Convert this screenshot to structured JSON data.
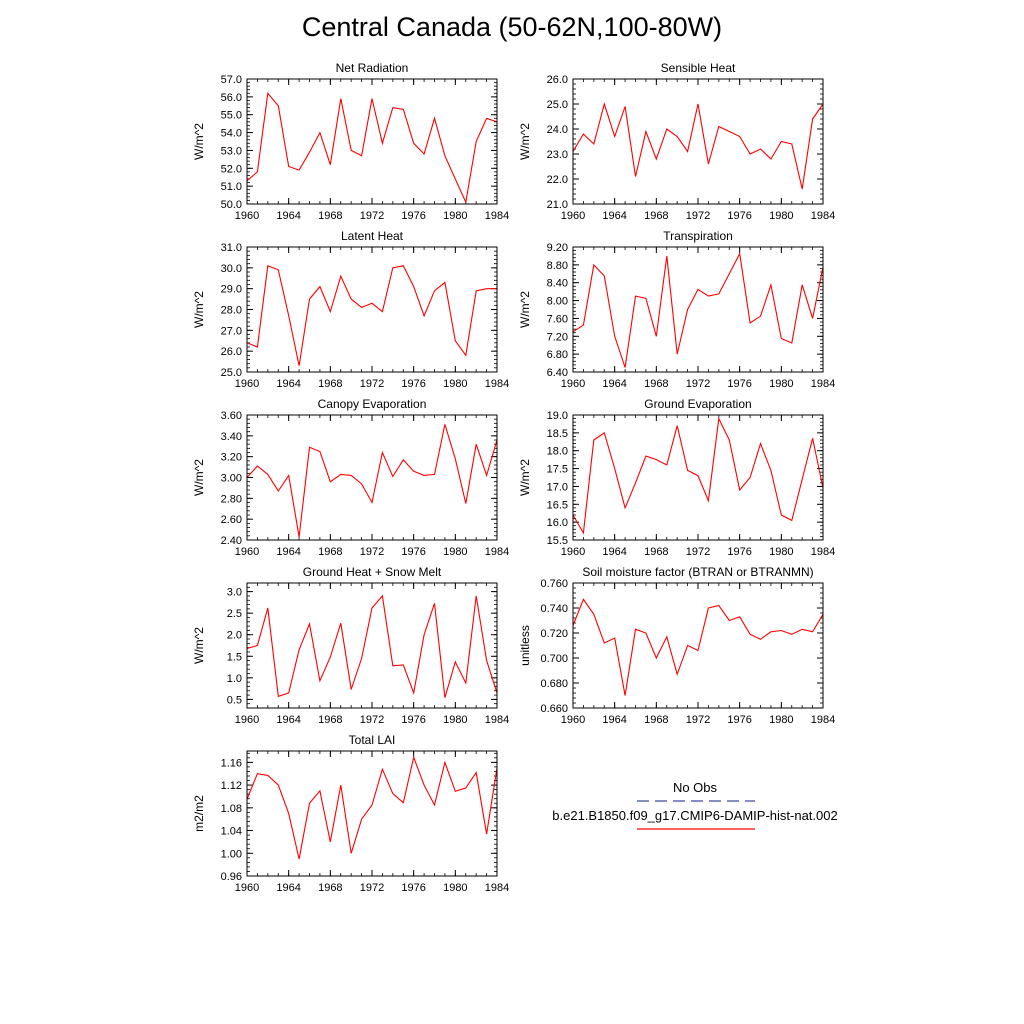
{
  "page_title": "Central Canada (50-62N,100-80W)",
  "legend": {
    "obs_label": "No Obs",
    "obs_color": "#3a4a9a",
    "model_label": "b.e21.B1850.f09_g17.CMIP6-DAMIP-hist-nat.002",
    "model_color": "#ff0000"
  },
  "chart_data": [
    {
      "type": "line",
      "title": "Net Radiation",
      "ylabel": "W/m^2",
      "xlim": [
        1960,
        1984
      ],
      "ylim": [
        50.0,
        57.0
      ],
      "xticks": [
        1960,
        1964,
        1968,
        1972,
        1976,
        1980,
        1984
      ],
      "yticks": [
        "50.0",
        "51.0",
        "52.0",
        "53.0",
        "54.0",
        "55.0",
        "56.0",
        "57.0"
      ],
      "x": [
        1960,
        1961,
        1962,
        1963,
        1964,
        1965,
        1966,
        1967,
        1968,
        1969,
        1970,
        1971,
        1972,
        1973,
        1974,
        1975,
        1976,
        1977,
        1978,
        1979,
        1980,
        1981,
        1982,
        1983,
        1984
      ],
      "series": [
        {
          "color": "#ff0000",
          "values": [
            51.3,
            51.8,
            56.2,
            55.5,
            52.1,
            51.9,
            52.9,
            54.0,
            52.2,
            55.9,
            53.0,
            52.7,
            55.9,
            53.4,
            55.4,
            55.3,
            53.4,
            52.8,
            54.8,
            52.7,
            51.4,
            50.1,
            53.5,
            54.8,
            54.6
          ]
        }
      ]
    },
    {
      "type": "line",
      "title": "Sensible Heat",
      "ylabel": "W/m^2",
      "xlim": [
        1960,
        1984
      ],
      "ylim": [
        21.0,
        26.0
      ],
      "xticks": [
        1960,
        1964,
        1968,
        1972,
        1976,
        1980,
        1984
      ],
      "yticks": [
        "21.0",
        "22.0",
        "23.0",
        "24.0",
        "25.0",
        "26.0"
      ],
      "x": [
        1960,
        1961,
        1962,
        1963,
        1964,
        1965,
        1966,
        1967,
        1968,
        1969,
        1970,
        1971,
        1972,
        1973,
        1974,
        1975,
        1976,
        1977,
        1978,
        1979,
        1980,
        1981,
        1982,
        1983,
        1984
      ],
      "series": [
        {
          "color": "#ff0000",
          "values": [
            23.1,
            23.8,
            23.4,
            25.0,
            23.7,
            24.9,
            22.1,
            23.9,
            22.8,
            24.0,
            23.7,
            23.1,
            25.0,
            22.6,
            24.1,
            23.9,
            23.7,
            23.0,
            23.2,
            22.8,
            23.5,
            23.4,
            21.6,
            24.4,
            25.0
          ]
        }
      ]
    },
    {
      "type": "line",
      "title": "Latent Heat",
      "ylabel": "W/m^2",
      "xlim": [
        1960,
        1984
      ],
      "ylim": [
        25.0,
        31.0
      ],
      "xticks": [
        1960,
        1964,
        1968,
        1972,
        1976,
        1980,
        1984
      ],
      "yticks": [
        "25.0",
        "26.0",
        "27.0",
        "28.0",
        "29.0",
        "30.0",
        "31.0"
      ],
      "x": [
        1960,
        1961,
        1962,
        1963,
        1964,
        1965,
        1966,
        1967,
        1968,
        1969,
        1970,
        1971,
        1972,
        1973,
        1974,
        1975,
        1976,
        1977,
        1978,
        1979,
        1980,
        1981,
        1982,
        1983,
        1984
      ],
      "series": [
        {
          "color": "#ff0000",
          "values": [
            26.4,
            26.2,
            30.1,
            29.9,
            27.7,
            25.3,
            28.5,
            29.1,
            27.9,
            29.6,
            28.5,
            28.1,
            28.3,
            27.9,
            30.0,
            30.1,
            29.1,
            27.7,
            28.9,
            29.3,
            26.5,
            25.8,
            28.9,
            29.0,
            29.0
          ]
        }
      ]
    },
    {
      "type": "line",
      "title": "Transpiration",
      "ylabel": "W/m^2",
      "xlim": [
        1960,
        1984
      ],
      "ylim": [
        6.4,
        9.2
      ],
      "xticks": [
        1960,
        1964,
        1968,
        1972,
        1976,
        1980,
        1984
      ],
      "yticks": [
        "6.40",
        "6.80",
        "7.20",
        "7.60",
        "8.00",
        "8.40",
        "8.80",
        "9.20"
      ],
      "x": [
        1960,
        1961,
        1962,
        1963,
        1964,
        1965,
        1966,
        1967,
        1968,
        1969,
        1970,
        1971,
        1972,
        1973,
        1974,
        1975,
        1976,
        1977,
        1978,
        1979,
        1980,
        1981,
        1982,
        1983,
        1984
      ],
      "series": [
        {
          "color": "#ff0000",
          "values": [
            7.3,
            7.45,
            8.8,
            8.55,
            7.2,
            6.5,
            8.1,
            8.05,
            7.2,
            9.0,
            6.8,
            7.8,
            8.25,
            8.1,
            8.15,
            8.6,
            9.05,
            7.5,
            7.65,
            8.35,
            7.15,
            7.05,
            8.35,
            7.6,
            8.75
          ]
        }
      ]
    },
    {
      "type": "line",
      "title": "Canopy Evaporation",
      "ylabel": "W/m^2",
      "xlim": [
        1960,
        1984
      ],
      "ylim": [
        2.4,
        3.6
      ],
      "xticks": [
        1960,
        1964,
        1968,
        1972,
        1976,
        1980,
        1984
      ],
      "yticks": [
        "2.40",
        "2.60",
        "2.80",
        "3.00",
        "3.20",
        "3.40",
        "3.60"
      ],
      "x": [
        1960,
        1961,
        1962,
        1963,
        1964,
        1965,
        1966,
        1967,
        1968,
        1969,
        1970,
        1971,
        1972,
        1973,
        1974,
        1975,
        1976,
        1977,
        1978,
        1979,
        1980,
        1981,
        1982,
        1983,
        1984
      ],
      "series": [
        {
          "color": "#ff0000",
          "values": [
            3.0,
            3.11,
            3.03,
            2.87,
            3.02,
            2.43,
            3.29,
            3.25,
            2.96,
            3.03,
            3.02,
            2.94,
            2.76,
            3.24,
            3.01,
            3.17,
            3.06,
            3.02,
            3.03,
            3.51,
            3.18,
            2.75,
            3.32,
            3.02,
            3.36
          ]
        }
      ]
    },
    {
      "type": "line",
      "title": "Ground Evaporation",
      "ylabel": "W/m^2",
      "xlim": [
        1960,
        1984
      ],
      "ylim": [
        15.5,
        19.0
      ],
      "xticks": [
        1960,
        1964,
        1968,
        1972,
        1976,
        1980,
        1984
      ],
      "yticks": [
        "15.5",
        "16.0",
        "16.5",
        "17.0",
        "17.5",
        "18.0",
        "18.5",
        "19.0"
      ],
      "x": [
        1960,
        1961,
        1962,
        1963,
        1964,
        1965,
        1966,
        1967,
        1968,
        1969,
        1970,
        1971,
        1972,
        1973,
        1974,
        1975,
        1976,
        1977,
        1978,
        1979,
        1980,
        1981,
        1982,
        1983,
        1984
      ],
      "series": [
        {
          "color": "#ff0000",
          "values": [
            16.2,
            15.7,
            18.3,
            18.5,
            17.5,
            16.4,
            17.1,
            17.85,
            17.75,
            17.6,
            18.7,
            17.45,
            17.3,
            16.6,
            18.9,
            18.3,
            16.9,
            17.25,
            18.2,
            17.45,
            16.2,
            16.05,
            17.2,
            18.35,
            16.95
          ]
        }
      ]
    },
    {
      "type": "line",
      "title": "Ground Heat + Snow Melt",
      "ylabel": "W/m^2",
      "xlim": [
        1960,
        1984
      ],
      "ylim": [
        0.3,
        3.2
      ],
      "xticks": [
        1960,
        1964,
        1968,
        1972,
        1976,
        1980,
        1984
      ],
      "yticks": [
        "0.5",
        "1.0",
        "1.5",
        "2.0",
        "2.5",
        "3.0"
      ],
      "x": [
        1960,
        1961,
        1962,
        1963,
        1964,
        1965,
        1966,
        1967,
        1968,
        1969,
        1970,
        1971,
        1972,
        1973,
        1974,
        1975,
        1976,
        1977,
        1978,
        1979,
        1980,
        1981,
        1982,
        1983,
        1984
      ],
      "series": [
        {
          "color": "#ff0000",
          "values": [
            1.68,
            1.75,
            2.62,
            0.57,
            0.65,
            1.65,
            2.25,
            0.93,
            1.48,
            2.27,
            0.73,
            1.45,
            2.62,
            2.9,
            1.28,
            1.3,
            0.65,
            2.0,
            2.73,
            0.54,
            1.37,
            0.88,
            2.9,
            1.4,
            0.65
          ]
        }
      ]
    },
    {
      "type": "line",
      "title": "Soil moisture factor (BTRAN or BTRANMN)",
      "ylabel": "unitless",
      "xlim": [
        1960,
        1984
      ],
      "ylim": [
        0.66,
        0.76
      ],
      "xticks": [
        1960,
        1964,
        1968,
        1972,
        1976,
        1980,
        1984
      ],
      "yticks": [
        "0.660",
        "0.680",
        "0.700",
        "0.720",
        "0.740",
        "0.760"
      ],
      "x": [
        1960,
        1961,
        1962,
        1963,
        1964,
        1965,
        1966,
        1967,
        1968,
        1969,
        1970,
        1971,
        1972,
        1973,
        1974,
        1975,
        1976,
        1977,
        1978,
        1979,
        1980,
        1981,
        1982,
        1983,
        1984
      ],
      "series": [
        {
          "color": "#ff0000",
          "values": [
            0.726,
            0.747,
            0.735,
            0.712,
            0.716,
            0.67,
            0.723,
            0.72,
            0.7,
            0.717,
            0.687,
            0.71,
            0.706,
            0.74,
            0.742,
            0.73,
            0.733,
            0.719,
            0.715,
            0.721,
            0.722,
            0.719,
            0.723,
            0.721,
            0.735
          ]
        }
      ]
    },
    {
      "type": "line",
      "title": "Total LAI",
      "ylabel": "m2/m2",
      "xlim": [
        1960,
        1984
      ],
      "ylim": [
        0.96,
        1.18
      ],
      "xticks": [
        1960,
        1964,
        1968,
        1972,
        1976,
        1980,
        1984
      ],
      "yticks": [
        "0.96",
        "1.00",
        "1.04",
        "1.08",
        "1.12",
        "1.16"
      ],
      "x": [
        1960,
        1961,
        1962,
        1963,
        1964,
        1965,
        1966,
        1967,
        1968,
        1969,
        1970,
        1971,
        1972,
        1973,
        1974,
        1975,
        1976,
        1977,
        1978,
        1979,
        1980,
        1981,
        1982,
        1983,
        1984
      ],
      "series": [
        {
          "color": "#ff0000",
          "values": [
            1.095,
            1.14,
            1.137,
            1.12,
            1.07,
            0.99,
            1.088,
            1.11,
            1.02,
            1.12,
            1.0,
            1.06,
            1.085,
            1.148,
            1.105,
            1.089,
            1.169,
            1.12,
            1.085,
            1.16,
            1.109,
            1.115,
            1.142,
            1.034,
            1.15
          ]
        }
      ]
    }
  ]
}
